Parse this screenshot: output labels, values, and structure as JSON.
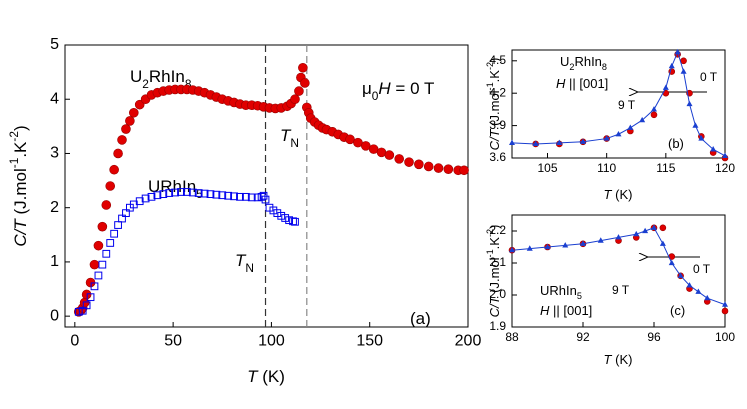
{
  "chart_data": [
    {
      "type": "scatter",
      "xlabel": [
        {
          "text": "T",
          "style": "italic"
        },
        {
          "text": " (K)",
          "style": "normal"
        }
      ],
      "ylabel": [
        {
          "text": "C/T",
          "style": "italic"
        },
        {
          "text": " (J.mol",
          "style": "normal"
        },
        {
          "text": "-1",
          "style": "sup"
        },
        {
          "text": ".K",
          "style": "normal"
        },
        {
          "text": "-2",
          "style": "sup"
        },
        {
          "text": ")",
          "style": "normal"
        }
      ],
      "xlim": [
        -5,
        200
      ],
      "ylim": [
        -0.2,
        5
      ],
      "xticks": [
        0,
        50,
        100,
        150,
        200
      ],
      "yticks": [
        0,
        1,
        2,
        3,
        4,
        5
      ],
      "vlines": [
        97,
        118
      ],
      "annotations": [
        [
          {
            "text": "U",
            "style": "normal"
          },
          {
            "text": "2",
            "style": "sub"
          },
          {
            "text": "RhIn",
            "style": "normal"
          },
          {
            "text": "8",
            "style": "sub"
          }
        ],
        [
          {
            "text": "URhIn",
            "style": "normal"
          },
          {
            "text": "5",
            "style": "sub"
          }
        ],
        [
          {
            "text": "T",
            "style": "italic"
          },
          {
            "text": "N",
            "style": "sub"
          }
        ],
        [
          {
            "text": "T",
            "style": "italic"
          },
          {
            "text": "N",
            "style": "sub"
          }
        ],
        [
          {
            "text": "μ",
            "style": "normal"
          },
          {
            "text": "0",
            "style": "sub"
          },
          {
            "text": "H",
            "style": "italic"
          },
          {
            "text": " = 0 T",
            "style": "normal"
          }
        ],
        [
          {
            "text": "(a)",
            "style": "normal"
          }
        ]
      ],
      "series": [
        {
          "color": "#e00000",
          "marker": "circle",
          "line": false,
          "x": [
            2,
            3,
            4,
            5,
            6,
            8,
            10,
            12,
            14,
            16,
            18,
            20,
            22,
            24,
            26,
            28,
            30,
            33,
            36,
            39,
            42,
            45,
            48,
            51,
            54,
            57,
            60,
            63,
            66,
            69,
            72,
            75,
            78,
            81,
            84,
            87,
            90,
            93,
            96,
            99,
            102,
            105,
            108,
            110,
            112,
            114,
            115,
            116,
            117,
            118,
            119,
            120,
            122,
            124,
            126,
            128,
            131,
            134,
            137,
            140,
            144,
            148,
            152,
            156,
            160,
            165,
            170,
            175,
            180,
            185,
            190,
            195,
            198
          ],
          "values": [
            0.08,
            0.1,
            0.15,
            0.25,
            0.4,
            0.62,
            0.95,
            1.3,
            1.65,
            2.05,
            2.4,
            2.7,
            3.0,
            3.25,
            3.45,
            3.6,
            3.75,
            3.9,
            4.0,
            4.08,
            4.12,
            4.15,
            4.17,
            4.18,
            4.18,
            4.18,
            4.17,
            4.15,
            4.12,
            4.08,
            4.04,
            4.0,
            3.97,
            3.94,
            3.91,
            3.89,
            3.89,
            3.88,
            3.86,
            3.84,
            3.83,
            3.84,
            3.87,
            3.92,
            4.0,
            4.15,
            4.4,
            4.58,
            4.3,
            3.85,
            3.75,
            3.65,
            3.58,
            3.52,
            3.47,
            3.44,
            3.4,
            3.35,
            3.3,
            3.26,
            3.2,
            3.14,
            3.08,
            3.02,
            2.97,
            2.9,
            2.84,
            2.8,
            2.76,
            2.73,
            2.71,
            2.69,
            2.69
          ]
        },
        {
          "color": "#0000ee",
          "marker": "square-open",
          "line": false,
          "x": [
            2,
            4,
            6,
            8,
            10,
            12,
            14,
            16,
            18,
            20,
            22,
            24,
            26,
            28,
            30,
            33,
            36,
            39,
            42,
            45,
            48,
            51,
            54,
            57,
            60,
            63,
            66,
            69,
            72,
            75,
            78,
            81,
            84,
            87,
            90,
            93,
            95,
            96,
            97,
            99,
            101,
            103,
            105,
            107,
            109,
            111,
            112
          ],
          "values": [
            0.08,
            0.1,
            0.2,
            0.35,
            0.55,
            0.75,
            0.95,
            1.15,
            1.35,
            1.52,
            1.68,
            1.8,
            1.9,
            2.0,
            2.06,
            2.12,
            2.17,
            2.2,
            2.23,
            2.25,
            2.27,
            2.28,
            2.29,
            2.29,
            2.28,
            2.27,
            2.26,
            2.25,
            2.24,
            2.23,
            2.22,
            2.21,
            2.2,
            2.2,
            2.19,
            2.19,
            2.2,
            2.22,
            2.15,
            2.0,
            1.95,
            1.9,
            1.85,
            1.81,
            1.77,
            1.75,
            1.74
          ]
        }
      ]
    },
    {
      "type": "scatter",
      "xlabel": [
        {
          "text": "T",
          "style": "italic"
        },
        {
          "text": " (K)",
          "style": "normal"
        }
      ],
      "ylabel": [
        {
          "text": "C/T",
          "style": "italic"
        },
        {
          "text": " (J.mol",
          "style": "normal"
        },
        {
          "text": "-1",
          "style": "sup"
        },
        {
          "text": ".K",
          "style": "normal"
        },
        {
          "text": "-2",
          "style": "sup"
        },
        {
          "text": ")",
          "style": "normal"
        }
      ],
      "xlim": [
        102,
        120
      ],
      "ylim": [
        3.6,
        4.6
      ],
      "xticks": [
        105,
        110,
        115,
        120
      ],
      "yticks": [
        3.6,
        3.9,
        4.2,
        4.5
      ],
      "annotations": [
        [
          {
            "text": "U",
            "style": "normal"
          },
          {
            "text": "2",
            "style": "sub"
          },
          {
            "text": "RhIn",
            "style": "normal"
          },
          {
            "text": "8",
            "style": "sub"
          }
        ],
        [
          {
            "text": "H",
            "style": "italic"
          },
          {
            "text": " || [001]",
            "style": "normal"
          }
        ],
        [
          {
            "text": "(b)",
            "style": "normal"
          }
        ]
      ],
      "series": [
        {
          "name": "0 T",
          "color": "#e00000",
          "marker": "circle",
          "line": false,
          "x": [
            104,
            106,
            108,
            110,
            112,
            114,
            115,
            115.5,
            116,
            116.5,
            117,
            118,
            119,
            120
          ],
          "values": [
            3.73,
            3.73,
            3.75,
            3.78,
            3.85,
            4.0,
            4.2,
            4.4,
            4.56,
            4.5,
            4.2,
            3.8,
            3.65,
            3.6
          ]
        },
        {
          "name": "9 T",
          "color": "#1a3fd0",
          "marker": "triangle",
          "line": true,
          "x": [
            102,
            104,
            106,
            108,
            110,
            111,
            112,
            113,
            114,
            115,
            115.5,
            116,
            116.5,
            117,
            117.5,
            118,
            119,
            120
          ],
          "values": [
            3.74,
            3.73,
            3.74,
            3.75,
            3.78,
            3.82,
            3.88,
            3.95,
            4.05,
            4.25,
            4.45,
            4.58,
            4.4,
            4.1,
            3.9,
            3.78,
            3.68,
            3.62
          ]
        }
      ]
    },
    {
      "type": "scatter",
      "xlabel": [
        {
          "text": "T",
          "style": "italic"
        },
        {
          "text": " (K)",
          "style": "normal"
        }
      ],
      "ylabel": [
        {
          "text": "C/T",
          "style": "italic"
        },
        {
          "text": " (J.mol",
          "style": "normal"
        },
        {
          "text": "-1",
          "style": "sup"
        },
        {
          "text": ".K",
          "style": "normal"
        },
        {
          "text": "-2",
          "style": "sup"
        },
        {
          "text": ")",
          "style": "normal"
        }
      ],
      "xlim": [
        88,
        100
      ],
      "ylim": [
        1.9,
        2.25
      ],
      "xticks": [
        88,
        92,
        96,
        100
      ],
      "yticks": [
        1.9,
        {
          "value": 2,
          "label": "2.0"
        },
        2.1,
        2.2
      ],
      "annotations": [
        [
          {
            "text": "URhIn",
            "style": "normal"
          },
          {
            "text": "5",
            "style": "sub"
          }
        ],
        [
          {
            "text": "H",
            "style": "italic"
          },
          {
            "text": " || [001]",
            "style": "normal"
          }
        ],
        [
          {
            "text": "(c)",
            "style": "normal"
          }
        ]
      ],
      "series": [
        {
          "name": "0 T",
          "color": "#e00000",
          "marker": "circle",
          "line": false,
          "x": [
            88,
            90,
            92,
            94,
            95,
            96,
            96.5,
            97,
            97.5,
            98,
            99,
            100
          ],
          "values": [
            2.14,
            2.15,
            2.16,
            2.17,
            2.18,
            2.21,
            2.21,
            2.12,
            2.06,
            2.02,
            1.98,
            1.95
          ]
        },
        {
          "name": "9 T",
          "color": "#1a3fd0",
          "marker": "triangle",
          "line": true,
          "x": [
            88,
            89,
            90,
            91,
            92,
            93,
            94,
            95,
            95.5,
            96,
            96.5,
            97,
            97.5,
            98,
            98.5,
            99,
            100
          ],
          "values": [
            2.14,
            2.145,
            2.15,
            2.155,
            2.16,
            2.17,
            2.18,
            2.19,
            2.2,
            2.21,
            2.16,
            2.1,
            2.06,
            2.03,
            2.01,
            1.99,
            1.97
          ]
        }
      ]
    }
  ]
}
